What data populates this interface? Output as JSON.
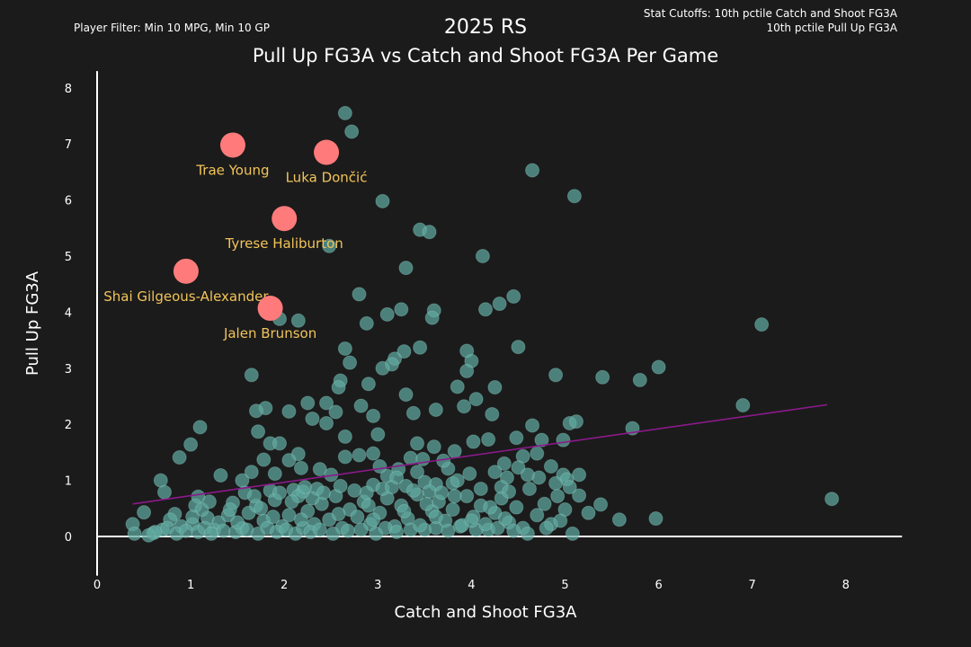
{
  "header": {
    "title": "2025 RS",
    "subtitle": "Pull Up FG3A vs Catch and Shoot FG3A Per Game",
    "filter_note": "Player Filter: Min 10 MPG, Min 10 GP",
    "cutoff_line1": "Stat Cutoffs: 10th pctile Catch and Shoot FG3A",
    "cutoff_line2": "10th pctile Pull Up FG3A"
  },
  "colors": {
    "background": "#1b1b1b",
    "point": "#5fa8a0",
    "highlight": "#ff7b7b",
    "highlight_label": "#f2c45a",
    "trend": "#8b1a8b",
    "axis": "#ffffff"
  },
  "chart_data": {
    "type": "scatter",
    "xlabel": "Catch and Shoot FG3A",
    "ylabel": "Pull Up FG3A",
    "xlim": [
      0,
      8.6
    ],
    "ylim": [
      -0.7,
      8.3
    ],
    "xticks": [
      0,
      1,
      2,
      3,
      4,
      5,
      6,
      7,
      8
    ],
    "yticks": [
      0,
      1,
      2,
      3,
      4,
      5,
      6,
      7,
      8
    ],
    "highlights": [
      {
        "name": "Trae Young",
        "x": 1.45,
        "y": 6.98
      },
      {
        "name": "Luka Dončić",
        "x": 2.45,
        "y": 6.85
      },
      {
        "name": "Tyrese Haliburton",
        "x": 2.0,
        "y": 5.67
      },
      {
        "name": "Shai Gilgeous-Alexander",
        "x": 0.95,
        "y": 4.73
      },
      {
        "name": "Jalen Brunson",
        "x": 1.85,
        "y": 4.07
      }
    ],
    "trendline": {
      "x": [
        0.38,
        7.8
      ],
      "y": [
        0.58,
        2.35
      ]
    },
    "points": [
      [
        2.65,
        7.55
      ],
      [
        2.72,
        7.22
      ],
      [
        4.65,
        6.53
      ],
      [
        5.1,
        6.07
      ],
      [
        3.05,
        5.98
      ],
      [
        3.45,
        5.47
      ],
      [
        3.55,
        5.43
      ],
      [
        2.48,
        5.18
      ],
      [
        4.12,
        5.0
      ],
      [
        3.3,
        4.79
      ],
      [
        2.8,
        4.32
      ],
      [
        4.45,
        4.28
      ],
      [
        4.3,
        4.15
      ],
      [
        4.15,
        4.05
      ],
      [
        3.25,
        4.05
      ],
      [
        3.6,
        4.03
      ],
      [
        3.1,
        3.96
      ],
      [
        3.58,
        3.9
      ],
      [
        1.95,
        3.88
      ],
      [
        2.15,
        3.85
      ],
      [
        2.88,
        3.8
      ],
      [
        7.1,
        3.78
      ],
      [
        4.5,
        3.38
      ],
      [
        2.65,
        3.35
      ],
      [
        3.45,
        3.37
      ],
      [
        3.95,
        3.31
      ],
      [
        3.28,
        3.3
      ],
      [
        3.18,
        3.17
      ],
      [
        2.7,
        3.1
      ],
      [
        4.0,
        3.13
      ],
      [
        6.0,
        3.02
      ],
      [
        3.15,
        3.07
      ],
      [
        3.05,
        3.0
      ],
      [
        3.95,
        2.95
      ],
      [
        1.65,
        2.88
      ],
      [
        4.9,
        2.88
      ],
      [
        5.4,
        2.84
      ],
      [
        5.8,
        2.79
      ],
      [
        2.6,
        2.78
      ],
      [
        2.9,
        2.72
      ],
      [
        2.58,
        2.66
      ],
      [
        3.85,
        2.67
      ],
      [
        4.25,
        2.66
      ],
      [
        3.3,
        2.53
      ],
      [
        4.05,
        2.45
      ],
      [
        2.45,
        2.38
      ],
      [
        2.25,
        2.38
      ],
      [
        2.82,
        2.33
      ],
      [
        3.62,
        2.26
      ],
      [
        1.8,
        2.29
      ],
      [
        3.92,
        2.32
      ],
      [
        6.9,
        2.34
      ],
      [
        1.7,
        2.24
      ],
      [
        2.05,
        2.23
      ],
      [
        2.55,
        2.22
      ],
      [
        3.38,
        2.2
      ],
      [
        4.22,
        2.18
      ],
      [
        2.95,
        2.15
      ],
      [
        2.3,
        2.1
      ],
      [
        2.45,
        2.02
      ],
      [
        4.65,
        1.98
      ],
      [
        5.05,
        2.02
      ],
      [
        5.12,
        2.05
      ],
      [
        5.72,
        1.93
      ],
      [
        1.1,
        1.95
      ],
      [
        1.72,
        1.87
      ],
      [
        3.0,
        1.82
      ],
      [
        2.65,
        1.78
      ],
      [
        4.48,
        1.76
      ],
      [
        4.75,
        1.72
      ],
      [
        4.02,
        1.69
      ],
      [
        4.18,
        1.73
      ],
      [
        4.98,
        1.72
      ],
      [
        3.42,
        1.66
      ],
      [
        3.6,
        1.6
      ],
      [
        1.0,
        1.64
      ],
      [
        1.85,
        1.66
      ],
      [
        1.95,
        1.66
      ],
      [
        3.82,
        1.52
      ],
      [
        2.15,
        1.47
      ],
      [
        2.8,
        1.45
      ],
      [
        2.95,
        1.48
      ],
      [
        4.7,
        1.48
      ],
      [
        4.55,
        1.43
      ],
      [
        3.35,
        1.4
      ],
      [
        3.48,
        1.38
      ],
      [
        0.88,
        1.41
      ],
      [
        1.78,
        1.37
      ],
      [
        2.05,
        1.36
      ],
      [
        2.65,
        1.42
      ],
      [
        4.35,
        1.3
      ],
      [
        4.85,
        1.25
      ],
      [
        3.22,
        1.2
      ],
      [
        3.75,
        1.21
      ],
      [
        4.5,
        1.23
      ],
      [
        3.42,
        1.15
      ],
      [
        1.65,
        1.15
      ],
      [
        4.98,
        1.1
      ],
      [
        5.15,
        1.1
      ],
      [
        3.1,
        1.08
      ],
      [
        3.2,
        1.05
      ],
      [
        4.38,
        1.05
      ],
      [
        4.72,
        1.05
      ],
      [
        5.02,
        1.02
      ],
      [
        1.32,
        1.09
      ],
      [
        1.55,
        1.0
      ],
      [
        0.68,
        1.0
      ],
      [
        3.5,
        0.97
      ],
      [
        3.62,
        0.93
      ],
      [
        3.8,
        0.95
      ],
      [
        4.9,
        0.95
      ],
      [
        2.95,
        0.92
      ],
      [
        3.3,
        0.9
      ],
      [
        4.32,
        0.88
      ],
      [
        4.1,
        0.85
      ],
      [
        2.1,
        0.83
      ],
      [
        1.85,
        0.82
      ],
      [
        2.2,
        0.8
      ],
      [
        0.72,
        0.79
      ],
      [
        1.08,
        0.71
      ],
      [
        5.15,
        0.73
      ],
      [
        5.38,
        0.57
      ],
      [
        0.5,
        0.43
      ],
      [
        0.83,
        0.4
      ],
      [
        5.25,
        0.42
      ],
      [
        5.58,
        0.3
      ],
      [
        5.97,
        0.32
      ],
      [
        7.85,
        0.67
      ],
      [
        0.38,
        0.22
      ],
      [
        0.4,
        0.05
      ],
      [
        0.6,
        0.06
      ],
      [
        0.7,
        0.12
      ],
      [
        0.78,
        0.3
      ],
      [
        0.9,
        0.18
      ],
      [
        1.02,
        0.22
      ],
      [
        1.18,
        0.33
      ],
      [
        1.25,
        0.12
      ],
      [
        1.3,
        0.25
      ],
      [
        1.4,
        0.38
      ],
      [
        1.55,
        0.15
      ],
      [
        1.62,
        0.42
      ],
      [
        1.7,
        0.55
      ],
      [
        1.78,
        0.28
      ],
      [
        1.9,
        0.65
      ],
      [
        1.98,
        0.18
      ],
      [
        2.05,
        0.38
      ],
      [
        2.15,
        0.72
      ],
      [
        2.25,
        0.45
      ],
      [
        2.32,
        0.22
      ],
      [
        2.4,
        0.58
      ],
      [
        2.48,
        0.3
      ],
      [
        2.55,
        0.72
      ],
      [
        2.62,
        0.15
      ],
      [
        2.7,
        0.48
      ],
      [
        2.78,
        0.35
      ],
      [
        2.85,
        0.62
      ],
      [
        2.92,
        0.22
      ],
      [
        3.02,
        0.42
      ],
      [
        3.1,
        0.68
      ],
      [
        3.18,
        0.18
      ],
      [
        3.25,
        0.55
      ],
      [
        3.32,
        0.32
      ],
      [
        3.42,
        0.75
      ],
      [
        3.5,
        0.12
      ],
      [
        3.58,
        0.45
      ],
      [
        3.65,
        0.62
      ],
      [
        3.72,
        0.28
      ],
      [
        3.8,
        0.48
      ],
      [
        3.88,
        0.18
      ],
      [
        3.95,
        0.72
      ],
      [
        4.02,
        0.35
      ],
      [
        4.1,
        0.55
      ],
      [
        4.18,
        0.12
      ],
      [
        4.25,
        0.42
      ],
      [
        4.32,
        0.68
      ],
      [
        4.4,
        0.25
      ],
      [
        4.48,
        0.52
      ],
      [
        4.55,
        0.15
      ],
      [
        4.62,
        0.85
      ],
      [
        4.7,
        0.38
      ],
      [
        4.78,
        0.58
      ],
      [
        4.85,
        0.22
      ],
      [
        4.92,
        0.72
      ],
      [
        5.0,
        0.48
      ],
      [
        5.08,
        0.05
      ],
      [
        1.05,
        0.55
      ],
      [
        1.12,
        0.48
      ],
      [
        1.2,
        0.62
      ],
      [
        1.45,
        0.6
      ],
      [
        1.58,
        0.78
      ],
      [
        1.68,
        0.72
      ],
      [
        1.75,
        0.5
      ],
      [
        1.95,
        0.78
      ],
      [
        2.08,
        0.62
      ],
      [
        2.22,
        0.88
      ],
      [
        2.35,
        0.85
      ],
      [
        2.42,
        0.78
      ],
      [
        2.6,
        0.9
      ],
      [
        2.75,
        0.82
      ],
      [
        2.88,
        0.78
      ],
      [
        3.05,
        0.85
      ],
      [
        3.15,
        0.88
      ],
      [
        3.38,
        0.82
      ],
      [
        3.55,
        0.8
      ],
      [
        3.68,
        0.78
      ],
      [
        3.82,
        0.72
      ],
      [
        0.62,
        0.08
      ],
      [
        0.75,
        0.15
      ],
      [
        0.85,
        0.05
      ],
      [
        0.95,
        0.1
      ],
      [
        1.08,
        0.08
      ],
      [
        1.15,
        0.15
      ],
      [
        1.22,
        0.05
      ],
      [
        1.35,
        0.1
      ],
      [
        1.48,
        0.08
      ],
      [
        1.6,
        0.12
      ],
      [
        1.72,
        0.05
      ],
      [
        1.82,
        0.15
      ],
      [
        1.92,
        0.08
      ],
      [
        2.02,
        0.12
      ],
      [
        2.12,
        0.05
      ],
      [
        2.2,
        0.15
      ],
      [
        2.28,
        0.08
      ],
      [
        2.38,
        0.12
      ],
      [
        2.52,
        0.05
      ],
      [
        2.68,
        0.1
      ],
      [
        2.82,
        0.12
      ],
      [
        2.98,
        0.05
      ],
      [
        3.08,
        0.15
      ],
      [
        3.2,
        0.08
      ],
      [
        3.35,
        0.12
      ],
      [
        3.45,
        0.2
      ],
      [
        3.62,
        0.15
      ],
      [
        3.75,
        0.1
      ],
      [
        3.9,
        0.2
      ],
      [
        4.05,
        0.12
      ],
      [
        4.15,
        0.22
      ],
      [
        4.28,
        0.15
      ],
      [
        4.45,
        0.1
      ],
      [
        4.6,
        0.05
      ],
      [
        4.8,
        0.15
      ],
      [
        4.95,
        0.28
      ],
      [
        1.5,
        0.25
      ],
      [
        1.88,
        0.35
      ],
      [
        2.18,
        0.3
      ],
      [
        2.58,
        0.4
      ],
      [
        2.95,
        0.3
      ],
      [
        3.28,
        0.45
      ],
      [
        3.62,
        0.35
      ],
      [
        4.0,
        0.28
      ],
      [
        4.36,
        0.32
      ],
      [
        0.55,
        0.02
      ],
      [
        1.02,
        0.35
      ],
      [
        1.42,
        0.48
      ],
      [
        2.3,
        0.68
      ],
      [
        2.9,
        0.55
      ],
      [
        3.52,
        0.58
      ],
      [
        4.2,
        0.52
      ],
      [
        4.4,
        0.8
      ],
      [
        3.98,
        1.12
      ],
      [
        4.25,
        1.15
      ],
      [
        3.7,
        1.35
      ],
      [
        2.38,
        1.2
      ],
      [
        2.5,
        1.1
      ],
      [
        2.18,
        1.22
      ],
      [
        3.02,
        1.25
      ],
      [
        1.9,
        1.12
      ],
      [
        3.85,
        1.0
      ],
      [
        4.6,
        1.1
      ],
      [
        5.05,
        0.88
      ]
    ]
  }
}
